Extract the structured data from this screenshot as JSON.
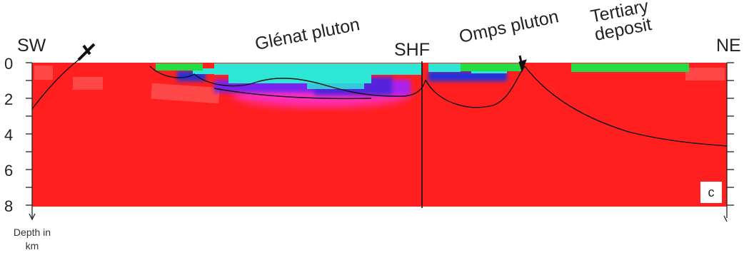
{
  "labels": {
    "sw": "SW",
    "ne": "NE",
    "glenat": "Glénat pluton",
    "shf": "SHF",
    "omps": "Omps pluton",
    "tertiary_line1": "Tertiary",
    "tertiary_line2": "deposit",
    "panel": "c"
  },
  "depth_axis": {
    "ticks": [
      "0",
      "2",
      "4",
      "6",
      "8"
    ],
    "caption_line1": "Depth in",
    "caption_line2": "km"
  },
  "colors": {
    "background_model": "#ff1f1f",
    "low_velocity_cyan": "#2ee6d6",
    "green": "#22dd44",
    "blue": "#2233dd",
    "purple": "#8822ee",
    "magenta": "#ff33dd",
    "faint_red": "#ff6a6a",
    "contour": "#111111"
  }
}
